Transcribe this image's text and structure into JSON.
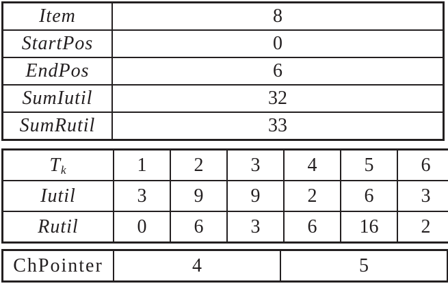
{
  "colors": {
    "border": "#231f20",
    "text": "#231f20",
    "background": "#ffffff"
  },
  "info_table": {
    "rows": [
      {
        "label": "Item",
        "value": "8"
      },
      {
        "label": "StartPos",
        "value": "0"
      },
      {
        "label": "EndPos",
        "value": "6"
      },
      {
        "label": "SumIutil",
        "value": "32"
      },
      {
        "label": "SumRutil",
        "value": "33"
      }
    ]
  },
  "utility_table": {
    "header": {
      "label_main": "T",
      "label_sub": "k",
      "values": [
        "1",
        "2",
        "3",
        "4",
        "5",
        "6"
      ]
    },
    "rows": [
      {
        "label": "Iutil",
        "values": [
          "3",
          "9",
          "9",
          "2",
          "6",
          "3"
        ]
      },
      {
        "label": "Rutil",
        "values": [
          "0",
          "6",
          "3",
          "6",
          "16",
          "2"
        ]
      }
    ]
  },
  "pointer_table": {
    "label": "ChPointer",
    "values": [
      "4",
      "5"
    ]
  }
}
